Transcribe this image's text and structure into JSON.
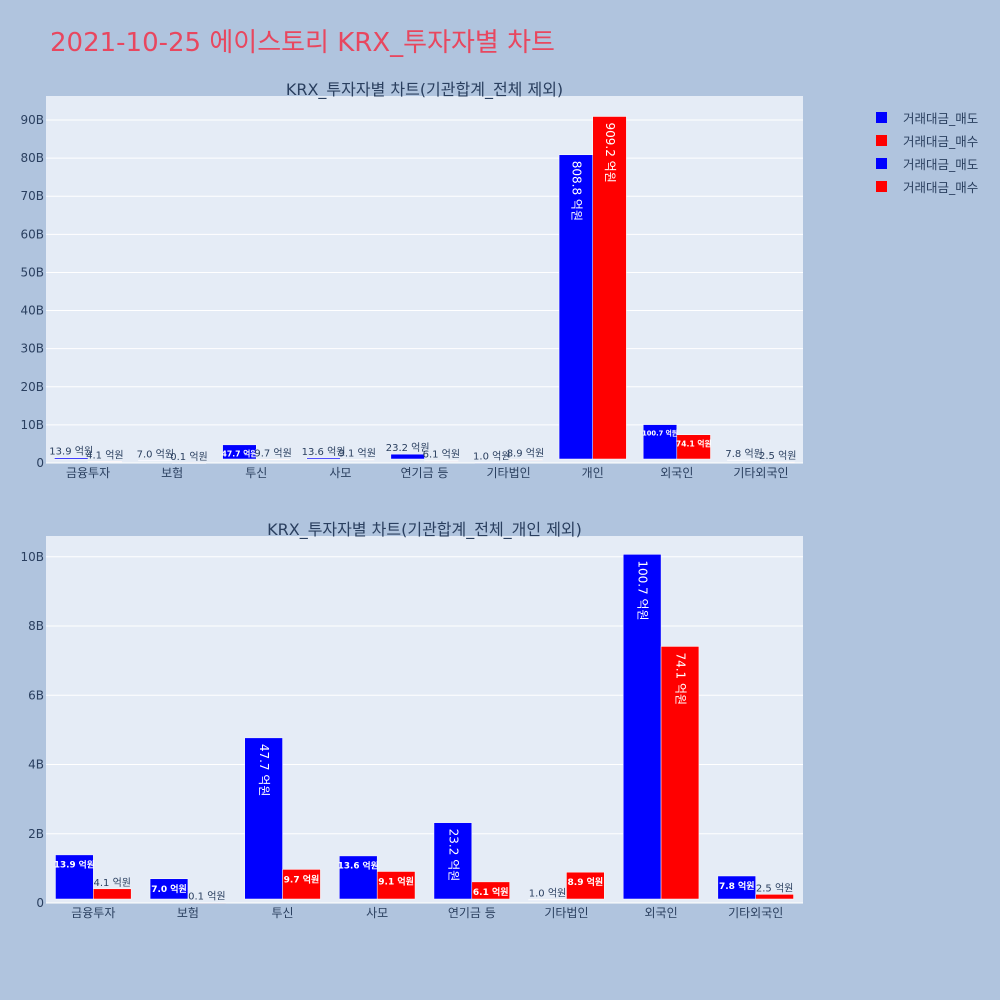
{
  "page_title": "2021-10-25 에이스토리 KRX_투자자별 차트",
  "colors": {
    "sell": "#0000ff",
    "buy": "#ff0000",
    "plot_bg": "#e5ecf6",
    "page_bg": "#b0c4de",
    "title": "#e8475f",
    "text": "#2a3f5f"
  },
  "legend": [
    {
      "label": "거래대금_매도",
      "color": "#0000ff"
    },
    {
      "label": "거래대금_매수",
      "color": "#ff0000"
    },
    {
      "label": "거래대금_매도",
      "color": "#0000ff"
    },
    {
      "label": "거래대금_매수",
      "color": "#ff0000"
    }
  ],
  "chart_data": [
    {
      "type": "bar",
      "title": "KRX_투자자별 차트(기관합계_전체 제외)",
      "categories": [
        "금융투자",
        "보험",
        "투신",
        "사모",
        "연기금 등",
        "기타법인",
        "개인",
        "외국인",
        "기타외국인"
      ],
      "series": [
        {
          "name": "거래대금_매도",
          "color": "#0000ff",
          "values": [
            1.39,
            0.7,
            4.77,
            1.36,
            2.32,
            0.1,
            80.88,
            10.07,
            0.78
          ],
          "labels": [
            "13.9 억원",
            "7.0 억원",
            "47.7 억원",
            "13.6 억원",
            "23.2 억원",
            "1.0 억원",
            "808.8 억원",
            "100.7 억원",
            "7.8 억원"
          ]
        },
        {
          "name": "거래대금_매수",
          "color": "#ff0000",
          "values": [
            0.41,
            0.01,
            0.97,
            0.91,
            0.61,
            0.89,
            90.92,
            7.41,
            0.25
          ],
          "labels": [
            "4.1 억원",
            "0.1 억원",
            "9.7 억원",
            "9.1 억원",
            "6.1 억원",
            "8.9 억원",
            "909.2 억원",
            "74.1 억원",
            "2.5 억원"
          ]
        }
      ],
      "yticks": [
        0,
        10,
        20,
        30,
        40,
        50,
        60,
        70,
        80,
        90
      ],
      "ytick_labels": [
        "0",
        "10B",
        "20B",
        "30B",
        "40B",
        "50B",
        "60B",
        "70B",
        "80B",
        "90B"
      ],
      "ylim": [
        0,
        96.3
      ],
      "unit": "billion KRW",
      "grid": true
    },
    {
      "type": "bar",
      "title": "KRX_투자자별 차트(기관합계_전체_개인 제외)",
      "categories": [
        "금융투자",
        "보험",
        "투신",
        "사모",
        "연기금 등",
        "기타법인",
        "외국인",
        "기타외국인"
      ],
      "series": [
        {
          "name": "거래대금_매도",
          "color": "#0000ff",
          "values": [
            1.39,
            0.7,
            4.77,
            1.36,
            2.32,
            0.1,
            10.07,
            0.78
          ],
          "labels": [
            "13.9 억원",
            "7.0 억원",
            "47.7 억원",
            "13.6 억원",
            "23.2 억원",
            "1.0 억원",
            "100.7 억원",
            "7.8 억원"
          ]
        },
        {
          "name": "거래대금_매수",
          "color": "#ff0000",
          "values": [
            0.41,
            0.01,
            0.97,
            0.91,
            0.61,
            0.89,
            7.41,
            0.25
          ],
          "labels": [
            "4.1 억원",
            "0.1 억원",
            "9.7 억원",
            "9.1 억원",
            "6.1 억원",
            "8.9 억원",
            "74.1 억원",
            "2.5 억원"
          ]
        }
      ],
      "yticks": [
        0,
        2,
        4,
        6,
        8,
        10
      ],
      "ytick_labels": [
        "0",
        "2B",
        "4B",
        "6B",
        "8B",
        "10B"
      ],
      "ylim": [
        0,
        10.6
      ],
      "unit": "billion KRW",
      "grid": true
    }
  ]
}
